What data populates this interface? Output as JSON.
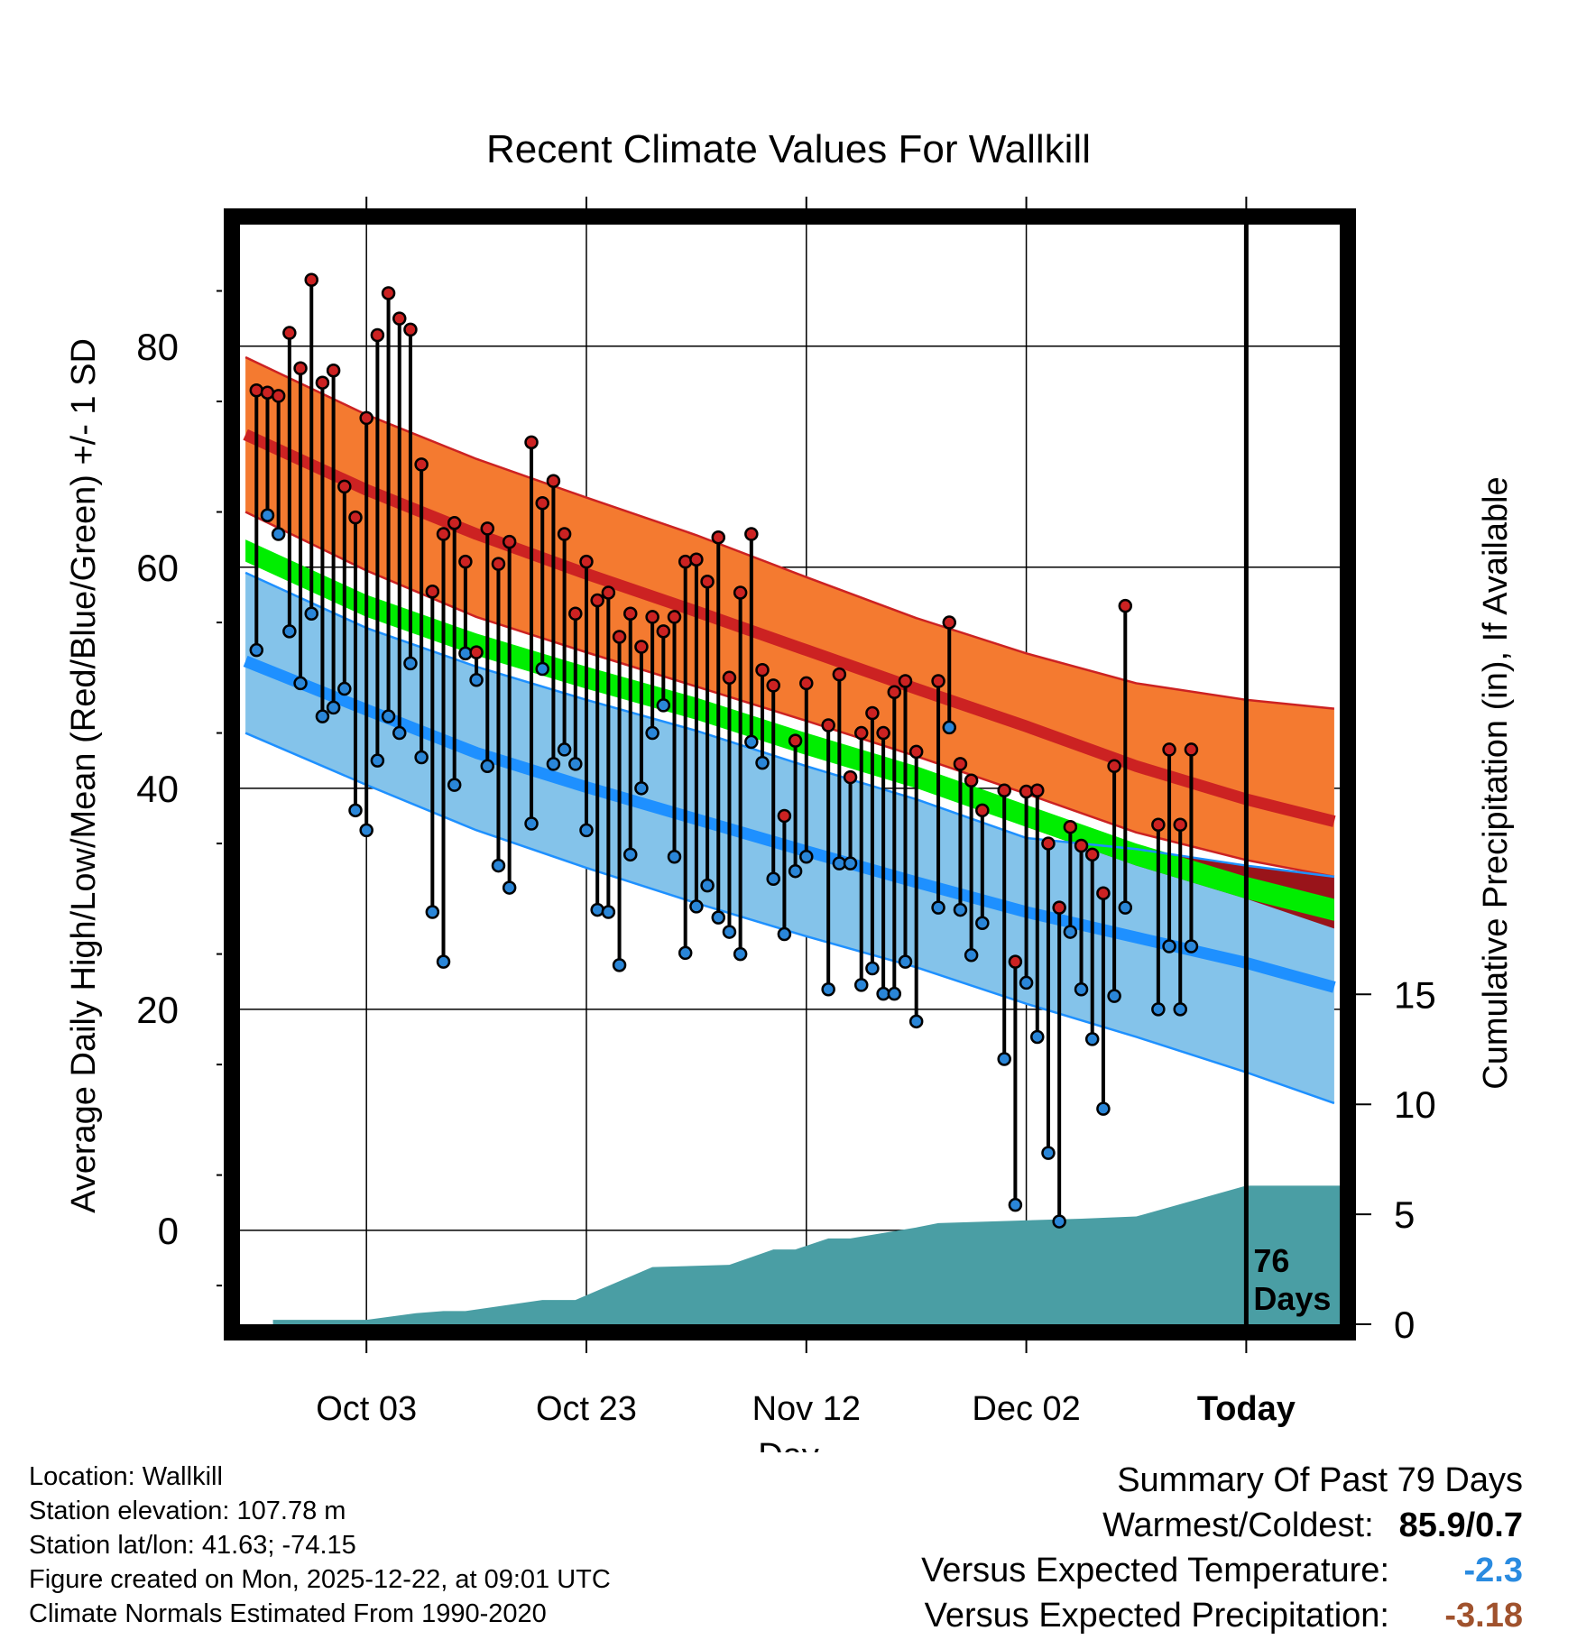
{
  "colors": {
    "high_band": "#f47a30",
    "high_edge": "#cc2222",
    "high_mean": "#cc2222",
    "low_band": "#84c3ea",
    "low_edge": "#1e90ff",
    "low_mean": "#1e90ff",
    "mean_band": "#00ee00",
    "deficit": "#99141a",
    "precip_fill": "#4a9ea4",
    "high_dot": "#cc2222",
    "low_dot": "#2a86d8",
    "temp_anomaly": "#2a8be0",
    "precip_anomaly": "#a0522d"
  },
  "chart_data": {
    "type": "line",
    "title": "Recent Climate Values For Wallkill",
    "xlabel": "Day",
    "ylabel": "Average Daily High/Low/Mean (Red/Blue/Green) +/- 1 SD",
    "ylabel_right": "Cumulative Precipitation (in), If Available",
    "x_range": [
      -11.5,
      88.5
    ],
    "ylim": [
      -8.5,
      91
    ],
    "y_ticks": [
      0,
      20,
      40,
      60,
      80
    ],
    "x_ticks": [
      {
        "x": 0,
        "label": "Oct 03"
      },
      {
        "x": 20,
        "label": "Oct 23"
      },
      {
        "x": 40,
        "label": "Nov 12"
      },
      {
        "x": 60,
        "label": "Dec 02"
      },
      {
        "x": 80,
        "label": "Today"
      }
    ],
    "right_axis": {
      "ylim": [
        0,
        50
      ],
      "ticks": [
        0,
        5,
        10,
        15
      ]
    },
    "today_x": 80,
    "today_label": [
      "76",
      "Days"
    ],
    "normals": {
      "x": [
        -11,
        0,
        10,
        20,
        30,
        40,
        50,
        60,
        70,
        80,
        88
      ],
      "high_upper": [
        79,
        73.8,
        69.8,
        66.3,
        62.9,
        59.1,
        55.4,
        52.2,
        49.5,
        48,
        47.2
      ],
      "high_mean": [
        72,
        67,
        63,
        59.4,
        56,
        52.5,
        49,
        45.6,
        42,
        39,
        37
      ],
      "high_lower": [
        65,
        59.7,
        55.5,
        52.3,
        49.2,
        46.1,
        42.9,
        39.5,
        36,
        33.5,
        32
      ],
      "mean_upper": [
        62.5,
        57.5,
        54,
        51,
        48.2,
        45,
        42,
        38.5,
        35,
        32,
        30
      ],
      "mean_lower": [
        60.5,
        55.5,
        52,
        49,
        46.2,
        43,
        40,
        36.5,
        33,
        30,
        28
      ],
      "low_upper": [
        59.5,
        54.5,
        51,
        48,
        45.2,
        42,
        39,
        35.5,
        34.5,
        33,
        32
      ],
      "low_mean": [
        51.5,
        47.1,
        43.2,
        40.1,
        37.2,
        34.3,
        31.5,
        28.8,
        26.5,
        24.2,
        22
      ],
      "low_lower": [
        45,
        40.3,
        36.2,
        32.8,
        29.6,
        26.6,
        23.8,
        20.5,
        17.5,
        14.3,
        11.5
      ]
    },
    "deficit_band": {
      "x": [
        60,
        70,
        80,
        88
      ],
      "upper": [
        36.5,
        34.5,
        33,
        32
      ],
      "lower": [
        36.5,
        33,
        30,
        27.3
      ]
    },
    "series": [
      {
        "name": "Daily High",
        "x": [
          -10,
          -9,
          -8,
          -7,
          -6,
          -5,
          -4,
          -3,
          -2,
          -1,
          0,
          1,
          2,
          3,
          4,
          5,
          6,
          7,
          8,
          9,
          10,
          11,
          12,
          13,
          15,
          16,
          17,
          18,
          19,
          20,
          21,
          22,
          23,
          24,
          25,
          26,
          27,
          28,
          29,
          30,
          31,
          32,
          33,
          34,
          35,
          36,
          37,
          38,
          39,
          40,
          42,
          43,
          44,
          45,
          46,
          47,
          48,
          49,
          50,
          52,
          53,
          54,
          55,
          56,
          58,
          59,
          60,
          61,
          62,
          63,
          64,
          65,
          66,
          67,
          68,
          69,
          72,
          73,
          74,
          75
        ],
        "values": [
          76,
          75.8,
          75.5,
          81.2,
          78,
          86,
          76.7,
          77.8,
          67.3,
          64.5,
          73.5,
          81,
          84.8,
          82.5,
          81.5,
          69.3,
          57.8,
          63,
          64,
          60.5,
          52.3,
          63.5,
          60.3,
          62.3,
          71.3,
          65.8,
          67.8,
          63,
          55.8,
          60.5,
          57,
          57.7,
          53.7,
          55.8,
          52.8,
          55.5,
          54.2,
          55.5,
          60.5,
          60.7,
          58.7,
          62.7,
          50,
          57.7,
          63,
          50.7,
          49.3,
          37.5,
          44.3,
          49.5,
          45.7,
          50.3,
          41,
          45,
          46.8,
          45,
          48.7,
          49.7,
          43.3,
          49.7,
          55,
          42.2,
          40.7,
          38,
          39.8,
          24.3,
          39.7,
          39.8,
          35,
          29.2,
          36.5,
          34.8,
          34,
          30.5,
          42,
          56.5,
          36.7,
          43.5,
          36.7,
          43.5
        ]
      },
      {
        "name": "Daily Low",
        "x": [
          -10,
          -9,
          -8,
          -7,
          -6,
          -5,
          -4,
          -3,
          -2,
          -1,
          0,
          1,
          2,
          3,
          4,
          5,
          6,
          7,
          8,
          9,
          10,
          11,
          12,
          13,
          15,
          16,
          17,
          18,
          19,
          20,
          21,
          22,
          23,
          24,
          25,
          26,
          27,
          28,
          29,
          30,
          31,
          32,
          33,
          34,
          35,
          36,
          37,
          38,
          39,
          40,
          42,
          43,
          44,
          45,
          46,
          47,
          48,
          49,
          50,
          52,
          53,
          54,
          55,
          56,
          58,
          59,
          60,
          61,
          62,
          63,
          64,
          65,
          66,
          67,
          68,
          69,
          72,
          73,
          74,
          75
        ],
        "values": [
          52.5,
          64.7,
          63,
          54.2,
          49.5,
          55.8,
          46.5,
          47.3,
          49,
          38,
          36.2,
          42.5,
          46.5,
          45,
          51.3,
          42.8,
          28.8,
          24.3,
          40.3,
          52.2,
          49.8,
          42,
          33,
          31,
          36.8,
          50.8,
          42.2,
          43.5,
          42.2,
          36.2,
          29,
          28.8,
          24,
          34,
          40,
          45,
          47.5,
          33.8,
          25.1,
          29.3,
          31.2,
          28.3,
          27,
          25,
          44.2,
          42.3,
          31.8,
          26.8,
          32.5,
          33.8,
          21.8,
          33.2,
          33.2,
          22.2,
          23.7,
          21.4,
          21.4,
          24.3,
          18.9,
          29.2,
          45.5,
          29,
          24.9,
          27.8,
          15.5,
          2.3,
          22.4,
          17.5,
          7,
          0.8,
          27,
          21.8,
          17.3,
          11,
          21.2,
          29.2,
          20,
          25.7,
          20,
          25.7
        ]
      },
      {
        "name": "Cumulative Precipitation",
        "x": [
          -8.5,
          0,
          4.5,
          7,
          9,
          16,
          19,
          26,
          33,
          37,
          39,
          42,
          44,
          50,
          52,
          65,
          70,
          80,
          88.5
        ],
        "values": [
          0.2,
          0.2,
          0.5,
          0.6,
          0.6,
          1.1,
          1.1,
          2.6,
          2.7,
          3.4,
          3.4,
          3.9,
          3.9,
          4.4,
          4.6,
          4.8,
          4.9,
          6.3,
          6.3
        ]
      }
    ]
  },
  "info": {
    "location": "Location: Wallkill",
    "elevation": "Station elevation: 107.78 m",
    "latlon": "Station lat/lon: 41.63; -74.15",
    "created": "Figure created on Mon, 2025-12-22, at 09:01 UTC",
    "normals": "Climate Normals Estimated From 1990-2020"
  },
  "summary": {
    "title": "Summary Of Past 79 Days",
    "warm_label": "Warmest/Coldest:",
    "warm_value": "85.9/0.7",
    "temp_label": "Versus Expected Temperature:",
    "temp_value": "-2.3",
    "precip_label": "Versus Expected Precipitation:",
    "precip_value": "-3.18"
  }
}
